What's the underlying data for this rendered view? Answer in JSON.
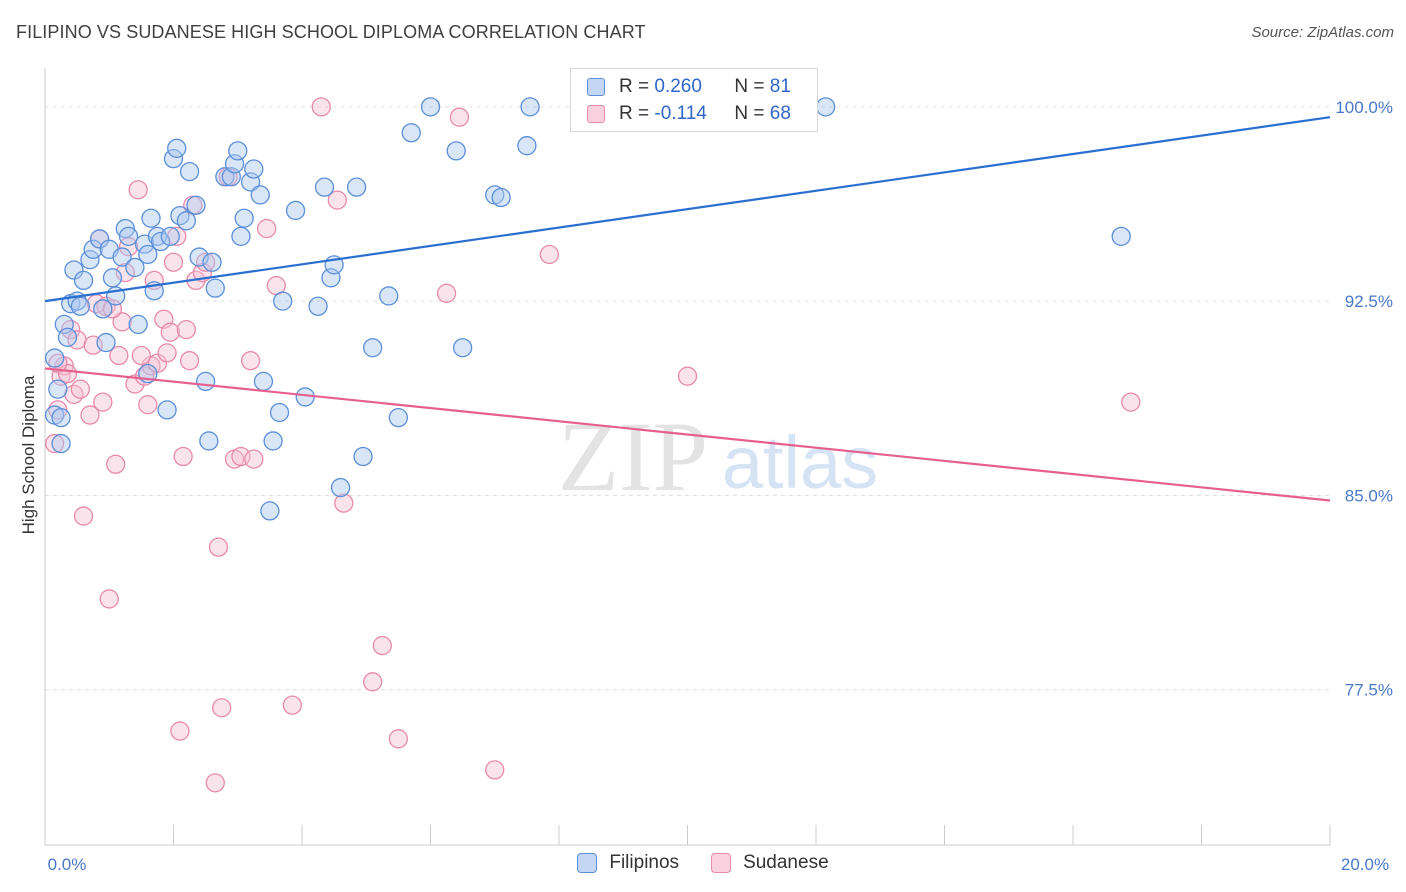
{
  "title": "FILIPINO VS SUDANESE HIGH SCHOOL DIPLOMA CORRELATION CHART",
  "source": "Source: ZipAtlas.com",
  "watermark": {
    "zip": "ZIP",
    "atlas": "atlas"
  },
  "legend": {
    "r_label": "R =",
    "n_label": "N =",
    "filipino": {
      "r": "0.260",
      "n": "81"
    },
    "sudanese": {
      "r": "-0.114",
      "n": "68"
    }
  },
  "bottom_legend": {
    "filipinos": "Filipinos",
    "sudanese": "Sudanese"
  },
  "colors": {
    "blue_fill": "#aac8f0",
    "blue_stroke": "#5b8fd8",
    "blue_line": "#2a6fd0",
    "pink_fill": "#f7c0d4",
    "pink_stroke": "#e88aaa",
    "pink_line": "#e5608f",
    "tick_text": "#4a78c8",
    "grid": "#dddddd"
  },
  "chart_data": {
    "type": "scatter",
    "title": "FILIPINO VS SUDANESE HIGH SCHOOL DIPLOMA CORRELATION CHART",
    "xlabel": "",
    "ylabel": "High School Diploma",
    "xlim": [
      0,
      20
    ],
    "ylim": [
      71.5,
      101.5
    ],
    "x_tick_labels": [
      {
        "value": 0,
        "label": "0.0%"
      },
      {
        "value": 20,
        "label": "20.0%"
      }
    ],
    "y_tick_labels": [
      {
        "value": 100,
        "label": "100.0%"
      },
      {
        "value": 92.5,
        "label": "92.5%"
      },
      {
        "value": 85,
        "label": "85.0%"
      },
      {
        "value": 77.5,
        "label": "77.5%"
      }
    ],
    "series": [
      {
        "name": "Filipinos",
        "r": 0.26,
        "n": 81,
        "trend": {
          "x": [
            0,
            20
          ],
          "y": [
            92.5,
            99.6
          ]
        },
        "points": [
          [
            0.15,
            90.3
          ],
          [
            0.2,
            89.1
          ],
          [
            0.15,
            88.1
          ],
          [
            0.25,
            87.0
          ],
          [
            0.3,
            91.6
          ],
          [
            0.35,
            91.1
          ],
          [
            0.4,
            92.4
          ],
          [
            0.5,
            92.5
          ],
          [
            0.45,
            93.7
          ],
          [
            0.6,
            93.3
          ],
          [
            0.7,
            94.1
          ],
          [
            0.75,
            94.5
          ],
          [
            0.85,
            94.9
          ],
          [
            0.9,
            92.2
          ],
          [
            0.95,
            90.9
          ],
          [
            1.0,
            94.5
          ],
          [
            1.05,
            93.4
          ],
          [
            1.1,
            92.7
          ],
          [
            1.2,
            94.2
          ],
          [
            1.25,
            95.3
          ],
          [
            1.3,
            95.0
          ],
          [
            1.4,
            93.8
          ],
          [
            1.45,
            91.6
          ],
          [
            1.55,
            94.7
          ],
          [
            1.6,
            94.3
          ],
          [
            1.65,
            95.7
          ],
          [
            1.7,
            92.9
          ],
          [
            1.75,
            95.0
          ],
          [
            1.8,
            94.8
          ],
          [
            1.9,
            88.3
          ],
          [
            1.95,
            95.0
          ],
          [
            2.0,
            98.0
          ],
          [
            2.05,
            98.4
          ],
          [
            2.1,
            95.8
          ],
          [
            2.2,
            95.6
          ],
          [
            2.25,
            97.5
          ],
          [
            2.35,
            96.2
          ],
          [
            2.4,
            94.2
          ],
          [
            2.5,
            89.4
          ],
          [
            2.6,
            94.0
          ],
          [
            2.55,
            87.1
          ],
          [
            2.65,
            93.0
          ],
          [
            2.8,
            97.3
          ],
          [
            2.9,
            97.3
          ],
          [
            2.95,
            97.8
          ],
          [
            3.0,
            98.3
          ],
          [
            3.05,
            95.0
          ],
          [
            3.1,
            95.7
          ],
          [
            3.2,
            97.1
          ],
          [
            3.25,
            97.6
          ],
          [
            3.35,
            96.6
          ],
          [
            3.4,
            89.4
          ],
          [
            3.5,
            84.4
          ],
          [
            3.55,
            87.1
          ],
          [
            3.65,
            88.2
          ],
          [
            3.7,
            92.5
          ],
          [
            3.9,
            96.0
          ],
          [
            4.05,
            88.8
          ],
          [
            4.25,
            92.3
          ],
          [
            4.35,
            96.9
          ],
          [
            4.45,
            93.4
          ],
          [
            4.5,
            93.9
          ],
          [
            4.6,
            85.3
          ],
          [
            4.85,
            96.9
          ],
          [
            4.95,
            86.5
          ],
          [
            5.1,
            90.7
          ],
          [
            5.35,
            92.7
          ],
          [
            5.5,
            88.0
          ],
          [
            5.7,
            99.0
          ],
          [
            6.0,
            100.0
          ],
          [
            6.4,
            98.3
          ],
          [
            6.5,
            90.7
          ],
          [
            7.0,
            96.6
          ],
          [
            7.1,
            96.5
          ],
          [
            7.5,
            98.5
          ],
          [
            7.55,
            100.0
          ],
          [
            12.15,
            100.0
          ],
          [
            16.75,
            95.0
          ],
          [
            0.25,
            88.0
          ],
          [
            0.55,
            92.3
          ],
          [
            1.6,
            89.7
          ]
        ]
      },
      {
        "name": "Sudanese",
        "r": -0.114,
        "n": 68,
        "trend": {
          "x": [
            0,
            20
          ],
          "y": [
            89.9,
            84.8
          ]
        },
        "points": [
          [
            0.15,
            87.0
          ],
          [
            0.2,
            88.3
          ],
          [
            0.25,
            89.6
          ],
          [
            0.3,
            90.0
          ],
          [
            0.35,
            89.7
          ],
          [
            0.4,
            91.4
          ],
          [
            0.45,
            88.9
          ],
          [
            0.5,
            91.0
          ],
          [
            0.55,
            89.1
          ],
          [
            0.6,
            84.2
          ],
          [
            0.7,
            88.1
          ],
          [
            0.75,
            90.8
          ],
          [
            0.8,
            92.4
          ],
          [
            0.85,
            94.9
          ],
          [
            0.9,
            88.6
          ],
          [
            0.95,
            92.3
          ],
          [
            1.0,
            81.0
          ],
          [
            1.1,
            86.2
          ],
          [
            1.15,
            90.4
          ],
          [
            1.2,
            91.7
          ],
          [
            1.25,
            93.6
          ],
          [
            1.3,
            94.6
          ],
          [
            1.4,
            89.3
          ],
          [
            1.45,
            96.8
          ],
          [
            1.55,
            89.6
          ],
          [
            1.6,
            88.5
          ],
          [
            1.65,
            90.0
          ],
          [
            1.7,
            93.3
          ],
          [
            1.75,
            90.1
          ],
          [
            1.85,
            91.8
          ],
          [
            1.9,
            90.5
          ],
          [
            1.95,
            91.3
          ],
          [
            2.0,
            94.0
          ],
          [
            2.05,
            95.0
          ],
          [
            2.1,
            75.9
          ],
          [
            2.15,
            86.5
          ],
          [
            2.2,
            91.4
          ],
          [
            2.25,
            90.2
          ],
          [
            2.3,
            96.2
          ],
          [
            2.35,
            93.3
          ],
          [
            2.45,
            93.6
          ],
          [
            2.5,
            94.0
          ],
          [
            2.65,
            73.9
          ],
          [
            2.7,
            83.0
          ],
          [
            2.75,
            76.8
          ],
          [
            2.85,
            97.3
          ],
          [
            2.95,
            86.4
          ],
          [
            3.05,
            86.5
          ],
          [
            3.2,
            90.2
          ],
          [
            3.25,
            86.4
          ],
          [
            3.45,
            95.3
          ],
          [
            3.6,
            93.1
          ],
          [
            3.85,
            76.9
          ],
          [
            4.3,
            100.0
          ],
          [
            4.55,
            96.4
          ],
          [
            4.65,
            84.7
          ],
          [
            5.1,
            77.8
          ],
          [
            5.25,
            79.2
          ],
          [
            5.5,
            75.6
          ],
          [
            6.25,
            92.8
          ],
          [
            6.45,
            99.6
          ],
          [
            7.0,
            74.4
          ],
          [
            7.85,
            94.3
          ],
          [
            10.0,
            89.6
          ],
          [
            16.9,
            88.6
          ],
          [
            0.2,
            90.1
          ],
          [
            1.05,
            92.2
          ],
          [
            1.5,
            90.4
          ]
        ]
      }
    ]
  }
}
